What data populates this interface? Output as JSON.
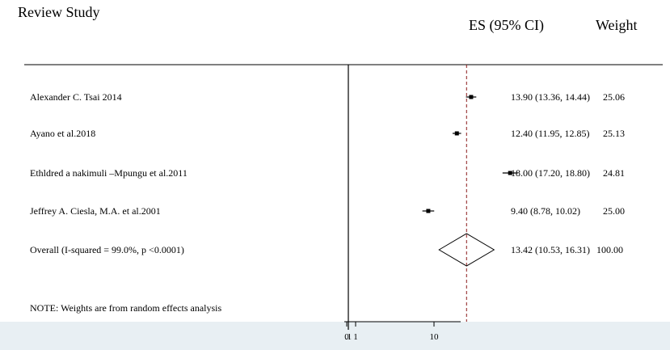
{
  "header": {
    "study_label": "Review Study",
    "es_label": "ES (95% CI)",
    "weight_label": "Weight"
  },
  "note": "NOTE: Weights are from random effects analysis",
  "colors": {
    "reference_line": "#8b1a1a",
    "marker": "#000000",
    "bottom_band": "#e8eff3"
  },
  "chart_data": {
    "type": "forest",
    "axis": {
      "ticks": [
        0,
        0.1,
        1,
        10
      ],
      "tick_labels": [
        "0",
        ".1",
        "1",
        "10"
      ],
      "scale": "log"
    },
    "studies": [
      {
        "name": "Alexander C. Tsai 2014",
        "es": 13.9,
        "lo": 13.36,
        "hi": 14.44,
        "ci_text": "13.90 (13.36, 14.44)",
        "weight_text": "25.06"
      },
      {
        "name": "Ayano et al.2018",
        "es": 12.4,
        "lo": 11.95,
        "hi": 12.85,
        "ci_text": "12.40 (11.95, 12.85)",
        "weight_text": "25.13"
      },
      {
        "name": "Ethldred a nakimuli –Mpungu et al.2011",
        "es": 18.0,
        "lo": 17.2,
        "hi": 18.8,
        "ci_text": "18.00 (17.20, 18.80)",
        "weight_text": "24.81"
      },
      {
        "name": "Jeffrey A. Ciesla, M.A. et al.2001",
        "es": 9.4,
        "lo": 8.78,
        "hi": 10.02,
        "ci_text": "9.40 (8.78, 10.02)",
        "weight_text": "25.00"
      }
    ],
    "overall": {
      "name": "Overall  (I-squared = 99.0%, p <0.0001)",
      "es": 13.42,
      "lo": 10.53,
      "hi": 16.31,
      "ci_text": "13.42 (10.53, 16.31)",
      "weight_text": "100.00"
    }
  }
}
